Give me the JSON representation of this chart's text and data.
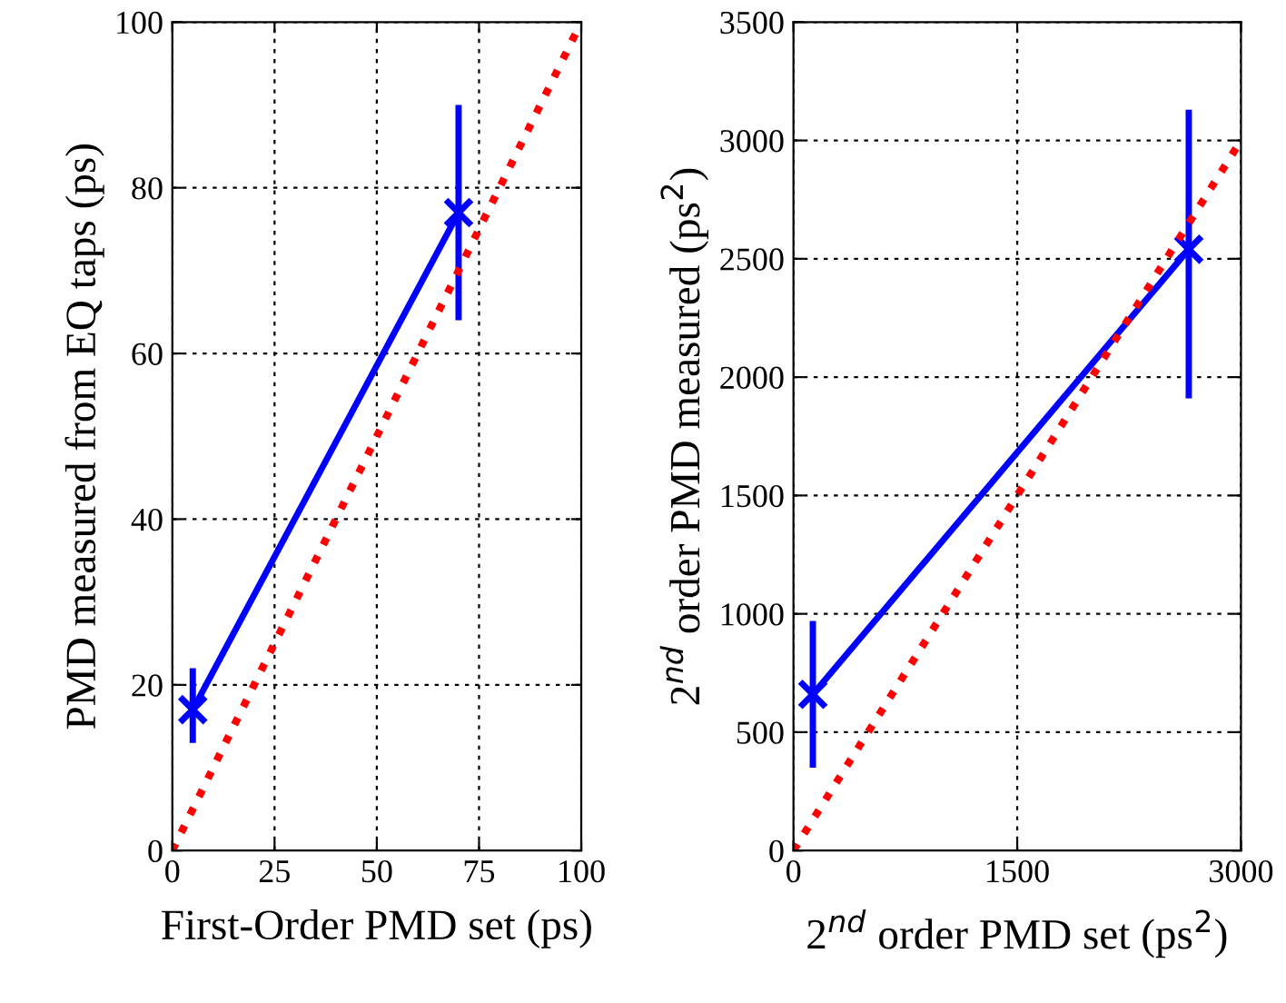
{
  "chart_data": [
    {
      "type": "line",
      "xlabel": "First-Order PMD set (ps)",
      "ylabel": "PMD measured from EQ taps (ps)",
      "xlim": [
        0,
        100
      ],
      "ylim": [
        0,
        100
      ],
      "xticks": [
        0,
        25,
        50,
        75,
        100
      ],
      "yticks": [
        0,
        20,
        40,
        60,
        80,
        100
      ],
      "grid": true,
      "series": [
        {
          "color": "#0000ff",
          "x": [
            5,
            70
          ],
          "values": [
            17,
            77
          ],
          "errors": [
            [
              13,
              22
            ],
            [
              64,
              90
            ]
          ],
          "marker": "cross",
          "line_style": "solid"
        },
        {
          "color": "#ff0000",
          "x": [
            0,
            100
          ],
          "values": [
            0,
            100
          ],
          "marker": "none",
          "line_style": "dotted"
        }
      ]
    },
    {
      "type": "line",
      "xlabel": "2$^{nd}$ order PMD set (ps$^{2}$)",
      "ylabel": "2$^{nd}$ order PMD measured (ps$^{2}$)",
      "xlim": [
        0,
        3000
      ],
      "ylim": [
        0,
        3500
      ],
      "xticks": [
        0,
        1500,
        3000
      ],
      "yticks": [
        0,
        500,
        1000,
        1500,
        2000,
        2500,
        3000,
        3500
      ],
      "grid": true,
      "series": [
        {
          "color": "#0000ff",
          "x": [
            130,
            2650
          ],
          "values": [
            660,
            2540
          ],
          "errors": [
            [
              350,
              970
            ],
            [
              1910,
              3130
            ]
          ],
          "marker": "cross",
          "line_style": "solid"
        },
        {
          "color": "#ff0000",
          "x": [
            0,
            3000
          ],
          "values": [
            0,
            3000
          ],
          "marker": "none",
          "line_style": "dotted"
        }
      ]
    }
  ]
}
